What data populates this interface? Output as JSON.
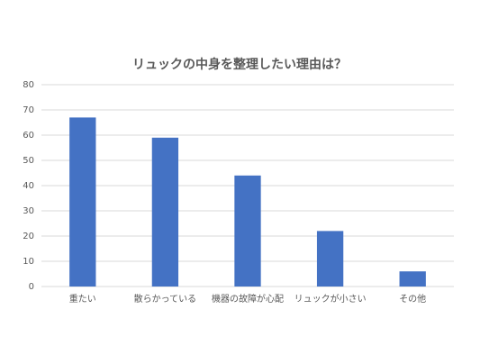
{
  "chart_data": {
    "type": "bar",
    "title": "リュックの中身を整理したい理由は？",
    "categories": [
      "重たい",
      "散らかっている",
      "機器の故障が心配",
      "リュックが小さい",
      "その他"
    ],
    "values": [
      67,
      59,
      44,
      22,
      6
    ],
    "color": "#4472c4",
    "ylim": [
      0,
      80
    ],
    "yticks": [
      0,
      10,
      20,
      30,
      40,
      50,
      60,
      70,
      80
    ],
    "grid": true
  }
}
